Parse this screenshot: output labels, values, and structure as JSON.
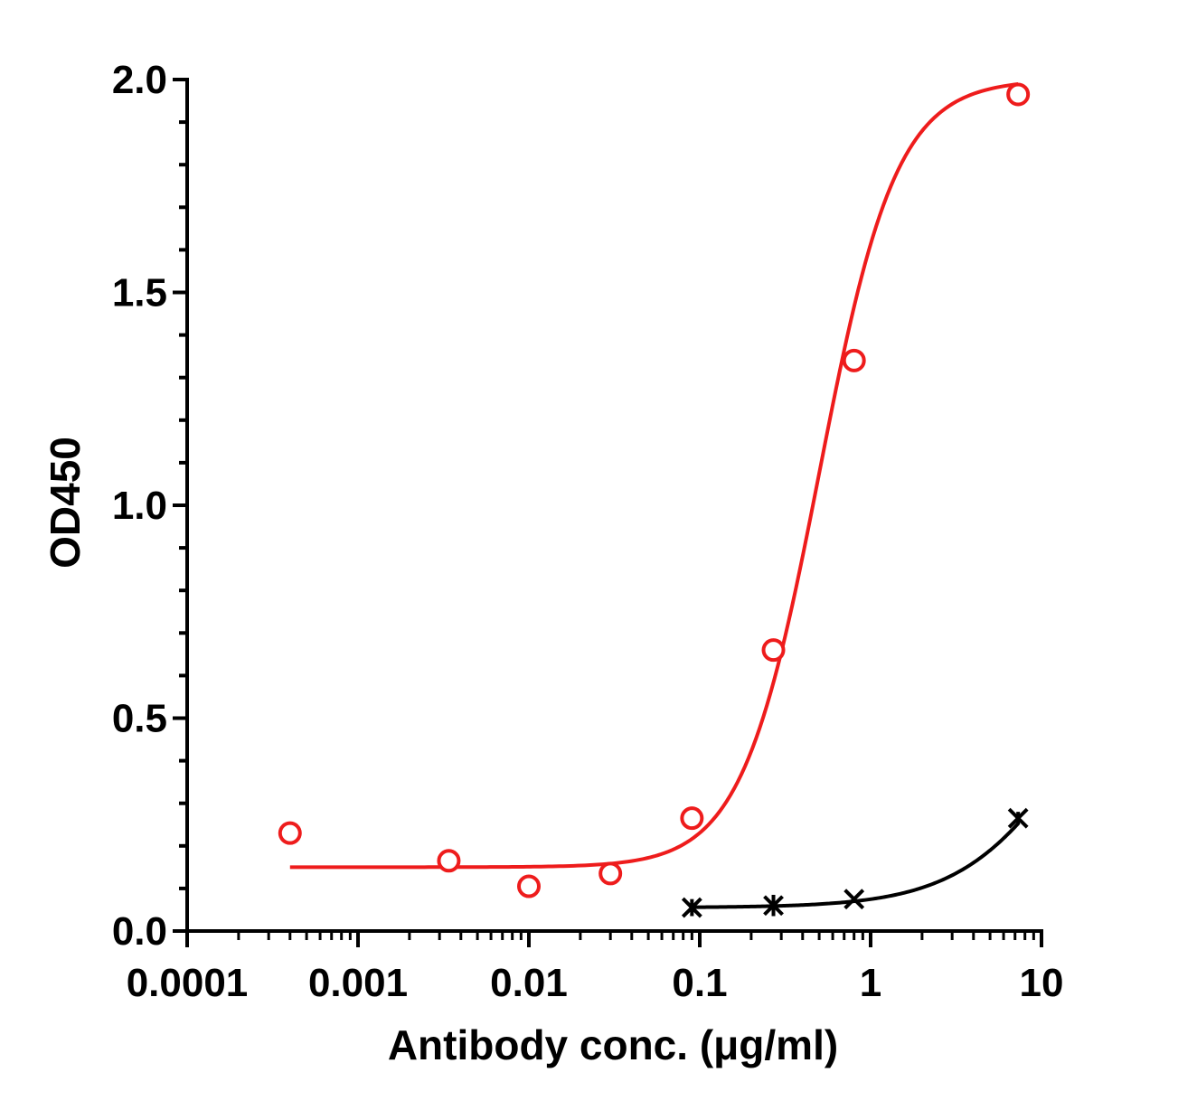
{
  "chart_data": {
    "type": "scatter",
    "title": "",
    "xlabel": "Antibody conc. (μg/ml)",
    "ylabel": "OD450",
    "x_scale": "log",
    "xlim": [
      0.0001,
      10
    ],
    "ylim": [
      0.0,
      2.0
    ],
    "x_tick_labels": [
      "0.0001",
      "0.001",
      "0.01",
      "0.1",
      "1",
      "10"
    ],
    "y_tick_labels": [
      "0.0",
      "0.5",
      "1.0",
      "1.5",
      "2.0"
    ],
    "grid": false,
    "legend": "none",
    "series": [
      {
        "marker": "open-circle",
        "color": "#ee1c1c",
        "x": [
          0.0004,
          0.0034,
          0.01,
          0.03,
          0.09,
          0.27,
          0.8,
          7.3
        ],
        "y": [
          0.23,
          0.165,
          0.105,
          0.135,
          0.265,
          0.66,
          1.34,
          1.965
        ],
        "fit": "4PL",
        "fit_params": {
          "bottom": 0.15,
          "top": 2.0,
          "ec50": 0.5,
          "hill": 1.92
        }
      },
      {
        "marker": "x",
        "color": "#000000",
        "x": [
          0.09,
          0.27,
          0.8,
          7.3
        ],
        "y": [
          0.055,
          0.06,
          0.075,
          0.265
        ],
        "y_err": [
          0.02,
          0.025,
          0.0,
          0.015
        ],
        "fit": "4PL",
        "fit_params": {
          "bottom": 0.055,
          "top": 0.8,
          "ec50": 16,
          "hill": 1.3
        }
      }
    ]
  }
}
